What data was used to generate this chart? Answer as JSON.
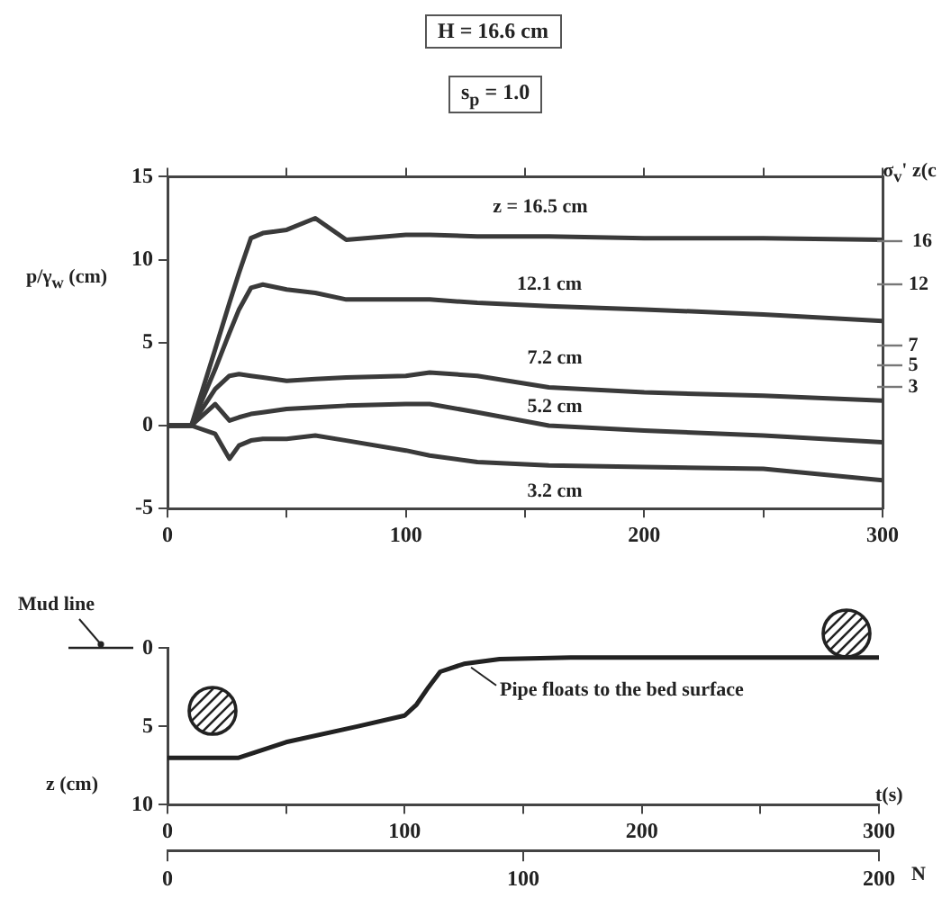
{
  "chart_data": [
    {
      "type": "line",
      "title": "H = 16.6 cm",
      "subtitle": "s$_{p}$ = 1.0",
      "ylabel": "p/γ$_{w}$ (cm)",
      "x": [
        0,
        10,
        20,
        26,
        30,
        35,
        40,
        50,
        62,
        75,
        100,
        110,
        130,
        160,
        200,
        250,
        300
      ],
      "series": [
        {
          "color": "#3a3a3a",
          "values": [
            0,
            0,
            4.6,
            7.4,
            9.2,
            11.3,
            11.6,
            11.8,
            12.5,
            11.2,
            11.5,
            11.5,
            11.4,
            11.4,
            11.3,
            11.3,
            11.2
          ]
        },
        {
          "color": "#3a3a3a",
          "values": [
            0,
            0,
            3.4,
            5.6,
            7,
            8.3,
            8.5,
            8.2,
            8,
            7.6,
            7.6,
            7.6,
            7.4,
            7.2,
            7,
            6.7,
            6.3
          ]
        },
        {
          "color": "#3a3a3a",
          "values": [
            0,
            0,
            2.2,
            3,
            3.1,
            3,
            2.9,
            2.7,
            2.8,
            2.9,
            3,
            3.2,
            3,
            2.3,
            2,
            1.8,
            1.5
          ]
        },
        {
          "color": "#3a3a3a",
          "values": [
            0,
            0,
            1.3,
            0.3,
            0.5,
            0.7,
            0.8,
            1,
            1.1,
            1.2,
            1.3,
            1.3,
            0.8,
            0,
            -0.3,
            -0.6,
            -1
          ]
        },
        {
          "color": "#3a3a3a",
          "values": [
            0,
            0,
            -0.5,
            -2,
            -1.2,
            -0.9,
            -0.8,
            -0.8,
            -0.6,
            -0.9,
            -1.5,
            -1.8,
            -2.2,
            -2.4,
            -2.5,
            -2.6,
            -3.3
          ]
        }
      ],
      "xlim": [
        0,
        300
      ],
      "xticks": [
        0,
        {
          "value": 50,
          "label": null
        },
        100,
        {
          "value": 150,
          "label": null
        },
        200,
        {
          "value": 250,
          "label": null
        },
        300
      ],
      "ylim": [
        -5,
        15
      ],
      "yticks": [
        -5,
        0,
        5,
        10,
        15
      ],
      "annotations": [
        "z = 16.5 cm",
        "12.1 cm",
        "7.2 cm",
        "5.2 cm",
        "3.2 cm",
        "σ$_{v}$'  z(c",
        "16",
        "12",
        "7",
        "5",
        "3"
      ],
      "grid": false,
      "legend": false,
      "marker": "none",
      "line_style": "solid"
    },
    {
      "type": "line",
      "xlabel": "t(s)",
      "ylabel": "z (cm)",
      "x": [
        0,
        30,
        50,
        80,
        100,
        105,
        110,
        115,
        125,
        140,
        170,
        300
      ],
      "values": [
        7,
        7,
        6,
        5,
        4.3,
        3.6,
        2.5,
        1.5,
        1,
        0.7,
        0.6,
        0.6
      ],
      "color": "#222222",
      "xlim": [
        0,
        300
      ],
      "xticks": [
        0,
        {
          "value": 50,
          "label": null
        },
        100,
        {
          "value": 150,
          "label": null
        },
        200,
        {
          "value": 250,
          "label": null
        },
        300
      ],
      "ylim": [
        10,
        0
      ],
      "yticks": [
        0,
        5,
        10
      ],
      "x2lim": [
        0,
        200
      ],
      "x2ticks": [
        0,
        100,
        200
      ],
      "x2label": "N",
      "annotations": [
        "Mud line",
        {
          "text": "Pipe floats to the bed surface",
          "x": 128,
          "y": 1
        }
      ],
      "grid": false,
      "legend": false,
      "marker": "none",
      "line_style": "solid"
    }
  ]
}
